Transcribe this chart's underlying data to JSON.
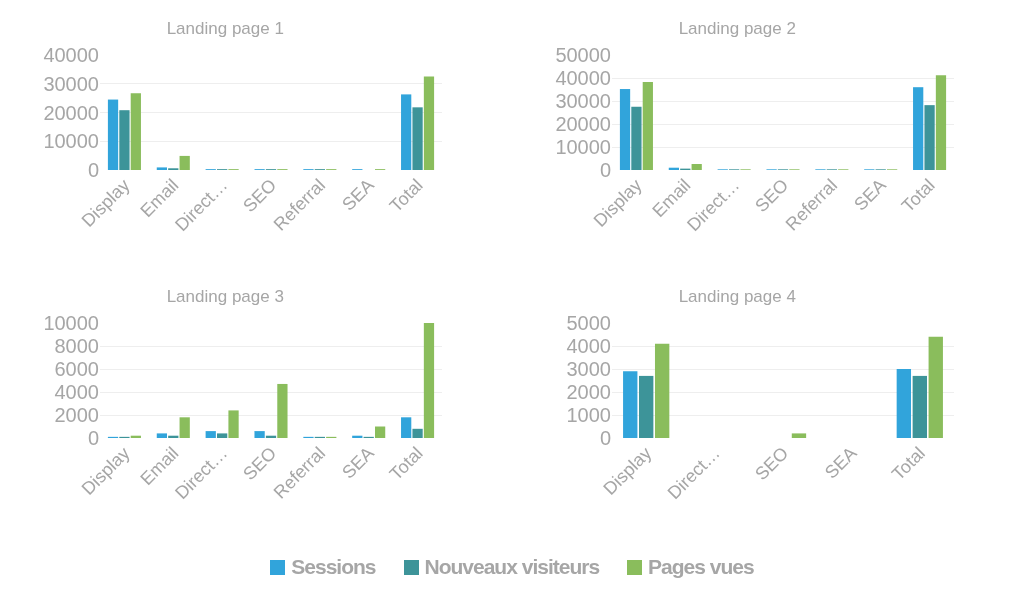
{
  "chart_data": [
    {
      "type": "bar",
      "title": "Landing page 1",
      "categories": [
        "Display",
        "Email",
        "Direct…",
        "SEO",
        "Referral",
        "SEA",
        "Total"
      ],
      "ylim": [
        0,
        40000
      ],
      "yticks": [
        0,
        10000,
        20000,
        30000,
        40000
      ],
      "grid": "y",
      "legend": "bottom",
      "series": [
        {
          "name": "Sessions",
          "color": "#31a4db",
          "values": [
            24500,
            900,
            300,
            300,
            300,
            300,
            26300
          ]
        },
        {
          "name": "Nouveaux visiteurs",
          "color": "#3d9499",
          "values": [
            20800,
            600,
            300,
            300,
            300,
            null,
            21800
          ]
        },
        {
          "name": "Pages vues",
          "color": "#8abd5c",
          "values": [
            26700,
            4900,
            300,
            300,
            300,
            300,
            32500
          ]
        }
      ]
    },
    {
      "type": "bar",
      "title": "Landing page 2",
      "categories": [
        "Display",
        "Email",
        "Direct…",
        "SEO",
        "Referral",
        "SEA",
        "Total"
      ],
      "ylim": [
        0,
        50000
      ],
      "yticks": [
        0,
        10000,
        20000,
        30000,
        40000,
        50000
      ],
      "grid": "y",
      "series": [
        {
          "color": "#31a4db",
          "values": [
            35200,
            1000,
            300,
            300,
            300,
            300,
            36000
          ]
        },
        {
          "color": "#3d9499",
          "values": [
            27500,
            600,
            300,
            300,
            300,
            300,
            28200
          ]
        },
        {
          "color": "#8abd5c",
          "values": [
            38300,
            2600,
            300,
            300,
            300,
            300,
            41200
          ]
        }
      ]
    },
    {
      "type": "bar",
      "title": "Landing page 3",
      "categories": [
        "Display",
        "Email",
        "Direct…",
        "SEO",
        "Referral",
        "SEA",
        "Total"
      ],
      "ylim": [
        0,
        10000
      ],
      "yticks": [
        0,
        2000,
        4000,
        6000,
        8000,
        10000
      ],
      "grid": "y",
      "series": [
        {
          "color": "#31a4db",
          "values": [
            100,
            400,
            600,
            600,
            100,
            200,
            1800
          ]
        },
        {
          "color": "#3d9499",
          "values": [
            100,
            200,
            400,
            200,
            100,
            100,
            800
          ]
        },
        {
          "color": "#8abd5c",
          "values": [
            200,
            1800,
            2400,
            4700,
            100,
            1000,
            10000
          ]
        }
      ]
    },
    {
      "type": "bar",
      "title": "Landing page 4",
      "categories": [
        "Display",
        "Direct…",
        "SEO",
        "SEA",
        "Total"
      ],
      "ylim": [
        0,
        5000
      ],
      "yticks": [
        0,
        1000,
        2000,
        3000,
        4000,
        5000
      ],
      "grid": "y",
      "series": [
        {
          "color": "#31a4db",
          "values": [
            2900,
            null,
            null,
            null,
            3000
          ]
        },
        {
          "color": "#3d9499",
          "values": [
            2700,
            null,
            null,
            null,
            2700
          ]
        },
        {
          "color": "#8abd5c",
          "values": [
            4100,
            null,
            200,
            null,
            4400
          ]
        }
      ]
    }
  ]
}
